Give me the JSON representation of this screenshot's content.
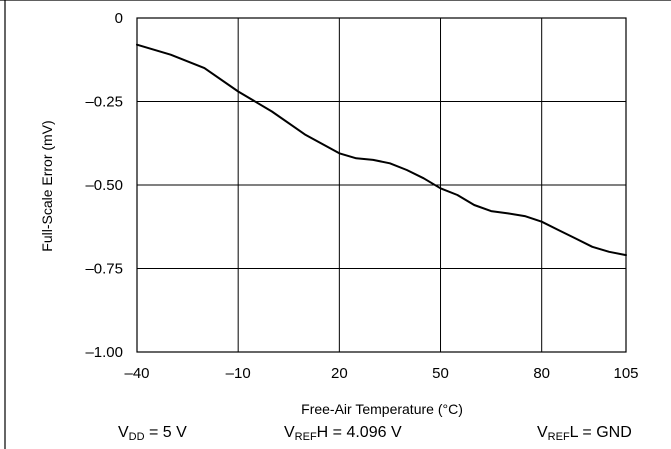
{
  "chart_data": {
    "type": "line",
    "xlabel": "Free-Air Temperature (°C)",
    "ylabel": "Full-Scale Error (mV)",
    "xlim": [
      -40,
      105
    ],
    "ylim": [
      -1.0,
      0
    ],
    "x_ticks": [
      -40,
      -10,
      20,
      50,
      80,
      105
    ],
    "x_tick_labels": [
      "–40",
      "–10",
      "20",
      "50",
      "80",
      "105"
    ],
    "y_ticks": [
      0,
      -0.25,
      -0.5,
      -0.75,
      -1.0
    ],
    "y_tick_labels": [
      "0",
      "–0.25",
      "–0.50",
      "–0.75",
      "–1.00"
    ],
    "grid": true,
    "series": [
      {
        "x": [
          -40,
          -30,
          -20,
          -10,
          0,
          10,
          20,
          25,
          30,
          35,
          40,
          45,
          50,
          55,
          60,
          65,
          70,
          75,
          80,
          85,
          90,
          95,
          100,
          105
        ],
        "y": [
          -0.08,
          -0.11,
          -0.15,
          -0.22,
          -0.28,
          -0.35,
          -0.405,
          -0.42,
          -0.425,
          -0.435,
          -0.455,
          -0.48,
          -0.51,
          -0.53,
          -0.56,
          -0.578,
          -0.585,
          -0.593,
          -0.61,
          -0.635,
          -0.66,
          -0.685,
          -0.7,
          -0.71
        ]
      }
    ]
  },
  "conditions": {
    "vdd_v": "V",
    "vdd_sub": "DD",
    "vdd_rest": " = 5 V",
    "vrefh_v": "V",
    "vrefh_sub": "REF",
    "vrefh_rest": "H = 4.096 V",
    "vrefl_v": "V",
    "vrefl_sub": "REF",
    "vrefl_rest": "L = GND"
  }
}
